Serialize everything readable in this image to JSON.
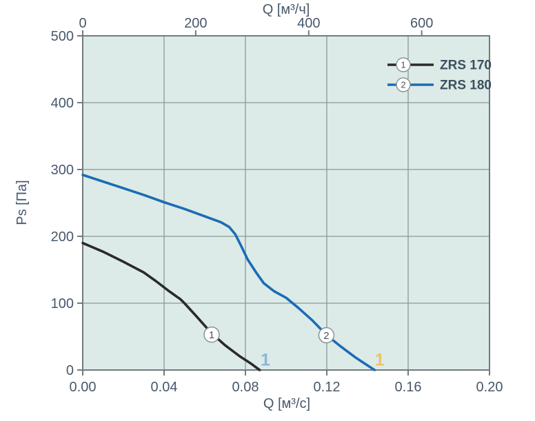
{
  "colors": {
    "plot_background": "#dcebe7",
    "grid": "#8b9799",
    "axis_border": "#707a7d",
    "text": "#47586b",
    "marker_fill": "#ffffff",
    "marker_stroke": "#8a9292",
    "marker_text": "#4c5258",
    "series1": "#2a2a2a",
    "series2": "#1a6cb5",
    "annotation_blue": "#8fb3dc",
    "annotation_yellow": "#ecc36a"
  },
  "chart_data": {
    "type": "line",
    "grid": true,
    "legend_position": "top-right",
    "top_axis": {
      "title": "Q [м³/ч]",
      "min": 0,
      "max": 720,
      "ticks": [
        0,
        200,
        400,
        600
      ],
      "tick_labels": [
        "0",
        "200",
        "400",
        "600"
      ]
    },
    "bottom_axis": {
      "title": "Q [м³/с]",
      "min": 0,
      "max": 0.2,
      "ticks": [
        0,
        0.04,
        0.08,
        0.12,
        0.16,
        0.2
      ],
      "tick_labels": [
        "0.00",
        "0.04",
        "0.08",
        "0.12",
        "0.16",
        "0.20"
      ]
    },
    "y_axis": {
      "title": "Ps [Па]",
      "min": 0,
      "max": 500,
      "ticks": [
        0,
        100,
        200,
        300,
        400,
        500
      ],
      "tick_labels": [
        "0",
        "100",
        "200",
        "300",
        "400",
        "500"
      ]
    },
    "series": [
      {
        "id": "1",
        "name": "ZRS 170",
        "color": "#2a2a2a",
        "marker": {
          "label": "1",
          "q": 0.0634,
          "ps": 53
        },
        "points": [
          [
            0.0,
            190
          ],
          [
            0.01,
            177
          ],
          [
            0.02,
            162
          ],
          [
            0.03,
            146
          ],
          [
            0.036,
            133
          ],
          [
            0.042,
            119
          ],
          [
            0.048,
            106
          ],
          [
            0.05,
            100
          ],
          [
            0.056,
            80
          ],
          [
            0.063,
            56
          ],
          [
            0.07,
            37
          ],
          [
            0.077,
            21
          ],
          [
            0.083,
            9
          ],
          [
            0.087,
            0
          ]
        ]
      },
      {
        "id": "2",
        "name": "ZRS 180",
        "color": "#1a6cb5",
        "marker": {
          "label": "2",
          "q": 0.1198,
          "ps": 52
        },
        "points": [
          [
            0.0,
            292
          ],
          [
            0.01,
            282
          ],
          [
            0.02,
            272
          ],
          [
            0.03,
            262
          ],
          [
            0.04,
            251
          ],
          [
            0.05,
            241
          ],
          [
            0.06,
            230
          ],
          [
            0.068,
            221
          ],
          [
            0.072,
            214
          ],
          [
            0.075,
            203
          ],
          [
            0.078,
            185
          ],
          [
            0.081,
            166
          ],
          [
            0.085,
            147
          ],
          [
            0.089,
            130
          ],
          [
            0.094,
            118
          ],
          [
            0.1,
            108
          ],
          [
            0.106,
            93
          ],
          [
            0.113,
            74
          ],
          [
            0.12,
            52
          ],
          [
            0.127,
            35
          ],
          [
            0.134,
            19
          ],
          [
            0.14,
            7
          ],
          [
            0.1435,
            0
          ]
        ]
      }
    ],
    "annotations": [
      {
        "text": "1",
        "color": "#8fb3dc",
        "q": 0.0898,
        "ps": 16
      },
      {
        "text": "1",
        "color": "#ecc36a",
        "q": 0.146,
        "ps": 16
      }
    ]
  }
}
